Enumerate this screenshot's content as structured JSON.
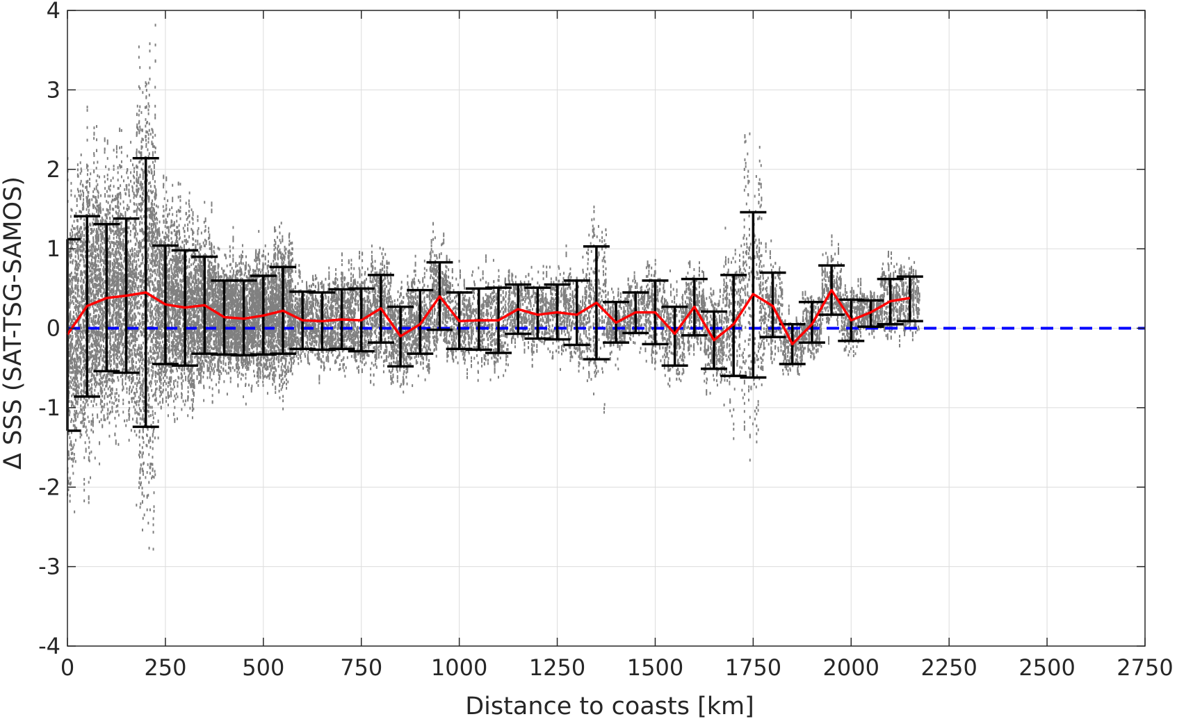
{
  "chart_data": {
    "type": "scatter",
    "title": "",
    "xlabel": "Distance to coasts [km]",
    "ylabel": "Δ SSS (SAT-TSG-SAMOS)",
    "xlim": [
      0,
      2750
    ],
    "ylim": [
      -4,
      4
    ],
    "xticks": [
      0,
      250,
      500,
      750,
      1000,
      1250,
      1500,
      1750,
      2000,
      2250,
      2500,
      2750
    ],
    "yticks": [
      -4,
      -3,
      -2,
      -1,
      0,
      1,
      2,
      3,
      4
    ],
    "xtick_labels": [
      "0",
      "250",
      "500",
      "750",
      "1000",
      "1250",
      "1500",
      "1750",
      "2000",
      "2250",
      "2500",
      "2750"
    ],
    "ytick_labels": [
      "-4",
      "-3",
      "-2",
      "-1",
      "0",
      "1",
      "2",
      "3",
      "4"
    ],
    "grid": true,
    "colors": {
      "scatter": "#808080",
      "mean_line": "#ff0000",
      "zero_line": "#0000ff",
      "errorbar": "#000000",
      "axes": "#262626",
      "grid": "#dcdcdc"
    },
    "reference_line": {
      "y": 0,
      "style": "dashed"
    },
    "bin_stats": {
      "x": [
        0,
        50,
        100,
        150,
        200,
        250,
        300,
        350,
        400,
        450,
        500,
        550,
        600,
        650,
        700,
        750,
        800,
        850,
        900,
        950,
        1000,
        1050,
        1100,
        1150,
        1200,
        1250,
        1300,
        1350,
        1400,
        1450,
        1500,
        1550,
        1600,
        1650,
        1700,
        1750,
        1800,
        1850,
        1900,
        1950,
        2000,
        2050,
        2100,
        2150
      ],
      "mean": [
        -0.08,
        0.28,
        0.38,
        0.41,
        0.45,
        0.3,
        0.26,
        0.29,
        0.14,
        0.12,
        0.16,
        0.22,
        0.1,
        0.09,
        0.11,
        0.1,
        0.25,
        -0.1,
        0.05,
        0.4,
        0.09,
        0.1,
        0.1,
        0.24,
        0.17,
        0.2,
        0.17,
        0.32,
        0.07,
        0.2,
        0.2,
        -0.07,
        0.27,
        -0.15,
        0.05,
        0.43,
        0.28,
        -0.2,
        0.05,
        0.48,
        0.1,
        0.2,
        0.34,
        0.38
      ],
      "upper": [
        1.12,
        1.41,
        1.31,
        1.38,
        2.14,
        1.04,
        0.98,
        0.9,
        0.6,
        0.6,
        0.66,
        0.77,
        0.46,
        0.45,
        0.49,
        0.5,
        0.67,
        0.27,
        0.48,
        0.83,
        0.45,
        0.5,
        0.51,
        0.55,
        0.51,
        0.55,
        0.6,
        1.03,
        0.33,
        0.45,
        0.6,
        0.27,
        0.62,
        0.21,
        0.67,
        1.46,
        0.7,
        0.05,
        0.33,
        0.79,
        0.36,
        0.35,
        0.62,
        0.65
      ],
      "lower": [
        -1.29,
        -0.86,
        -0.54,
        -0.56,
        -1.24,
        -0.45,
        -0.47,
        -0.32,
        -0.33,
        -0.34,
        -0.33,
        -0.32,
        -0.26,
        -0.27,
        -0.26,
        -0.29,
        -0.18,
        -0.48,
        -0.32,
        -0.02,
        -0.26,
        -0.27,
        -0.31,
        -0.07,
        -0.13,
        -0.14,
        -0.21,
        -0.39,
        -0.18,
        -0.06,
        -0.2,
        -0.47,
        -0.09,
        -0.51,
        -0.6,
        -0.62,
        -0.11,
        -0.45,
        -0.18,
        0.17,
        -0.16,
        0.02,
        0.05,
        0.09
      ]
    }
  }
}
